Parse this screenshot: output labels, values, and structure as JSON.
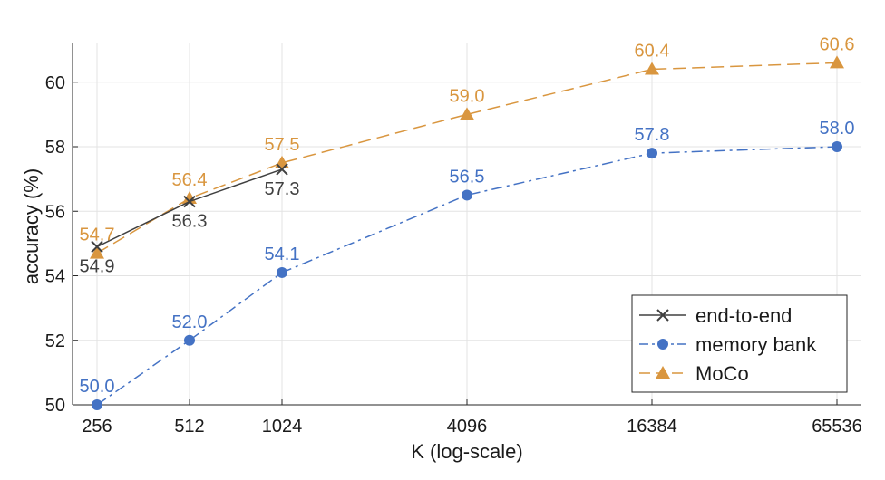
{
  "chart_data": {
    "type": "line",
    "xlabel": "K (log-scale)",
    "ylabel": "accuracy (%)",
    "xscale": "log2",
    "x_ticks": [
      256,
      512,
      1024,
      4096,
      16384,
      65536
    ],
    "x_tick_labels": [
      "256",
      "512",
      "1024",
      "4096",
      "16384",
      "65536"
    ],
    "xlim": [
      256,
      65536
    ],
    "ylim": [
      50,
      61.2
    ],
    "y_ticks": [
      50,
      52,
      54,
      56,
      58,
      60
    ],
    "y_tick_labels": [
      "50",
      "52",
      "54",
      "56",
      "58",
      "60"
    ],
    "grid": true,
    "legend_position": "bottom-right",
    "series": [
      {
        "name": "end-to-end",
        "color": "#404040",
        "marker": "x",
        "linestyle": "solid",
        "x": [
          256,
          512,
          1024
        ],
        "values": [
          54.9,
          56.3,
          57.3
        ],
        "labels": [
          "54.9",
          "56.3",
          "57.3"
        ],
        "label_position": "below"
      },
      {
        "name": "memory bank",
        "color": "#4472c4",
        "marker": "circle",
        "linestyle": "dashdot",
        "x": [
          256,
          512,
          1024,
          4096,
          16384,
          65536
        ],
        "values": [
          50.0,
          52.0,
          54.1,
          56.5,
          57.8,
          58.0
        ],
        "labels": [
          "50.0",
          "52.0",
          "54.1",
          "56.5",
          "57.8",
          "58.0"
        ],
        "label_position": "above"
      },
      {
        "name": "MoCo",
        "color": "#d9963f",
        "marker": "triangle",
        "linestyle": "dashed",
        "x": [
          256,
          512,
          1024,
          4096,
          16384,
          65536
        ],
        "values": [
          54.7,
          56.4,
          57.5,
          59.0,
          60.4,
          60.6
        ],
        "labels": [
          "54.7",
          "56.4",
          "57.5",
          "59.0",
          "60.4",
          "60.6"
        ],
        "label_position": "above"
      }
    ]
  }
}
